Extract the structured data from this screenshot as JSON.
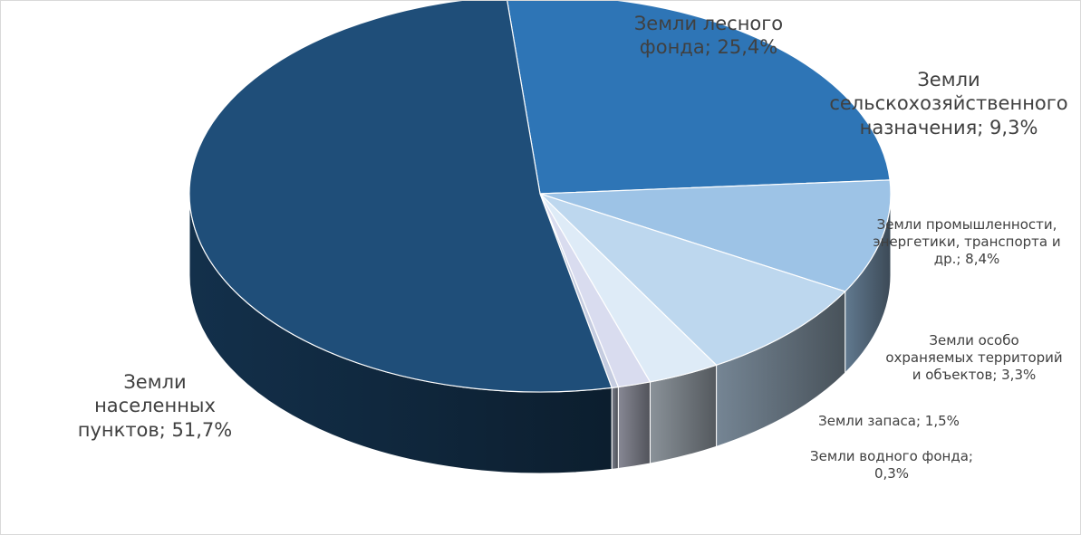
{
  "chart_data": {
    "type": "pie",
    "variant": "3d",
    "start_angle_deg": -95.5,
    "direction": "clockwise",
    "categories": [
      "Земли лесного фонда",
      "Земли сельскохозяйственного назначения",
      "Земли промышленности, энергетики, транспорта и др.",
      "Земли особо охраняемых территорий и объектов",
      "Земли запаса",
      "Земли водного фонда",
      "Земли населенных пунктов"
    ],
    "values": [
      25.4,
      9.3,
      8.4,
      3.3,
      1.5,
      0.3,
      51.7
    ],
    "value_labels": [
      "25,4%",
      "9,3%",
      "8,4%",
      "3,3%",
      "1,5%",
      "0,3%",
      "51,7%"
    ],
    "colors": [
      "#2E75B6",
      "#9DC3E6",
      "#BDD7EE",
      "#DEEBF7",
      "#D9DCEF",
      "#C5CCE0",
      "#1F4E79"
    ],
    "legend": "none"
  },
  "labels": [
    {
      "lines": [
        "Земли лесного",
        "фонда; 25,4%"
      ]
    },
    {
      "lines": [
        "Земли",
        "сельскохозяйственного",
        "назначения; 9,3%"
      ]
    },
    {
      "lines": [
        "Земли промышленности,",
        "энергетики, транспорта и",
        "др.; 8,4%"
      ]
    },
    {
      "lines": [
        "Земли особо",
        "охраняемых территорий",
        "и объектов; 3,3%"
      ]
    },
    {
      "lines": [
        "Земли запаса; 1,5%"
      ]
    },
    {
      "lines": [
        "Земли водного фонда;",
        "0,3%"
      ]
    },
    {
      "lines": [
        "Земли",
        "населенных",
        "пунктов; 51,7%"
      ]
    }
  ]
}
